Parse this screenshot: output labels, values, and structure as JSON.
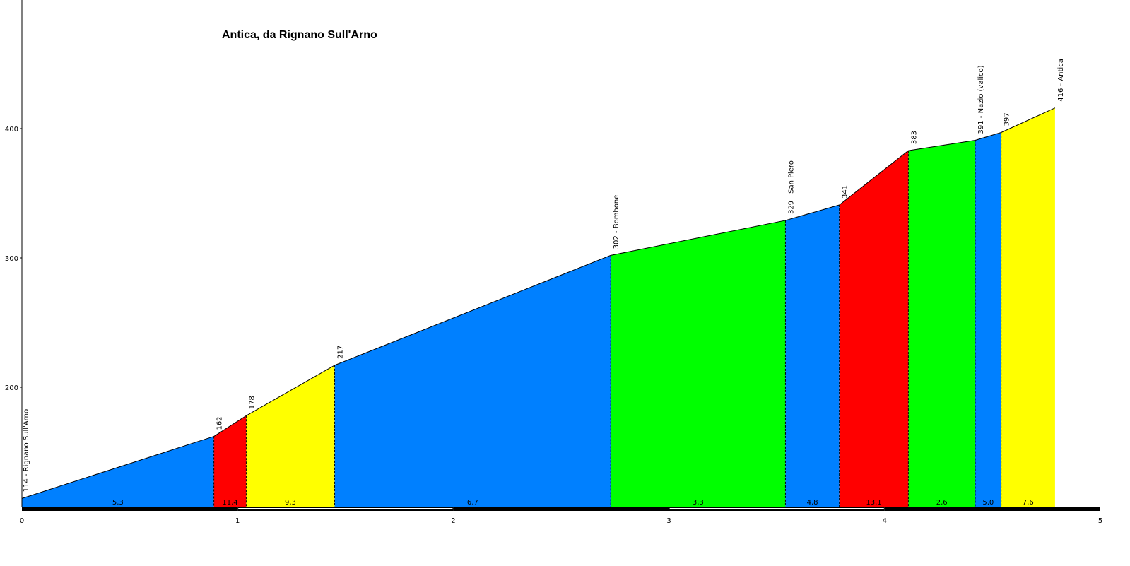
{
  "chart_data": {
    "type": "area",
    "title": "Antica, da Rignano Sull'Arno",
    "xlabel": "",
    "ylabel": "",
    "xlim": [
      0,
      5
    ],
    "ylim": [
      110,
      500
    ],
    "x_ticks": [
      "0",
      "1",
      "2",
      "3",
      "4",
      "5"
    ],
    "y_ticks": [
      "200",
      "300",
      "400"
    ],
    "y_tick_values": [
      200,
      300,
      400
    ],
    "grid": false,
    "profile": [
      {
        "x": 0.0,
        "y": 114,
        "label": "114 - Rignano Sull'Arno"
      },
      {
        "x": 0.89,
        "y": 162,
        "label": "162"
      },
      {
        "x": 1.04,
        "y": 178,
        "label": "178"
      },
      {
        "x": 1.45,
        "y": 217,
        "label": "217"
      },
      {
        "x": 2.73,
        "y": 302,
        "label": "302 - Bombone"
      },
      {
        "x": 3.54,
        "y": 329,
        "label": "329 - San Piero"
      },
      {
        "x": 3.79,
        "y": 341,
        "label": "341"
      },
      {
        "x": 4.11,
        "y": 383,
        "label": "383"
      },
      {
        "x": 4.42,
        "y": 391,
        "label": "391 - Nazio (valico)"
      },
      {
        "x": 4.54,
        "y": 397,
        "label": "397"
      },
      {
        "x": 4.79,
        "y": 416,
        "label": "416 - Antica"
      }
    ],
    "segments": [
      {
        "gradient": "5,3",
        "color": "#0080ff"
      },
      {
        "gradient": "11,4",
        "color": "#ff0000"
      },
      {
        "gradient": "9,3",
        "color": "#ffff00"
      },
      {
        "gradient": "6,7",
        "color": "#0080ff"
      },
      {
        "gradient": "3,3",
        "color": "#00ff00"
      },
      {
        "gradient": "4,8",
        "color": "#0080ff"
      },
      {
        "gradient": "13,1",
        "color": "#ff0000"
      },
      {
        "gradient": "2,6",
        "color": "#00ff00"
      },
      {
        "gradient": "5,0",
        "color": "#0080ff"
      },
      {
        "gradient": "7,6",
        "color": "#ffff00"
      }
    ]
  }
}
